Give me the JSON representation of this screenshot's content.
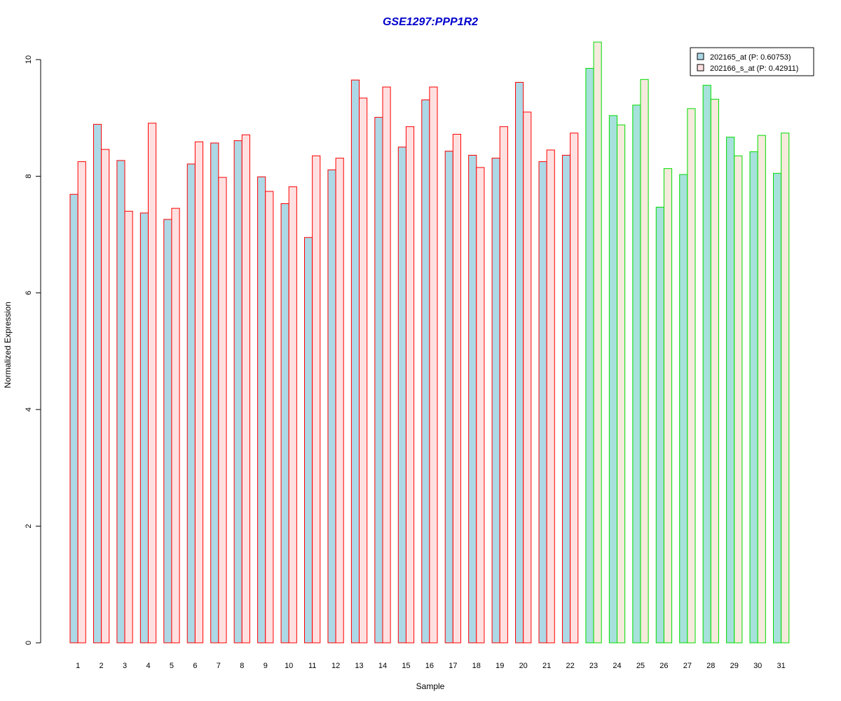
{
  "chart_data": {
    "type": "bar",
    "title": "GSE1297:PPP1R2",
    "xlabel": "Sample",
    "ylabel": "Normalized Expression",
    "ylim": [
      0,
      10
    ],
    "yticks": [
      0,
      2,
      4,
      6,
      8,
      10
    ],
    "grid": false,
    "legend_position": "top-right",
    "categories": [
      "1",
      "2",
      "3",
      "4",
      "5",
      "6",
      "7",
      "8",
      "9",
      "10",
      "11",
      "12",
      "13",
      "14",
      "15",
      "16",
      "17",
      "18",
      "19",
      "20",
      "21",
      "22",
      "23",
      "24",
      "25",
      "26",
      "27",
      "28",
      "29",
      "30",
      "31"
    ],
    "groups": [
      {
        "from": 1,
        "to": 22,
        "border_color": "#ff0000"
      },
      {
        "from": 23,
        "to": 31,
        "border_color": "#00dd00"
      }
    ],
    "series": [
      {
        "name": "202165_at (P: 0.60753)",
        "fill_group1": "#add8e6",
        "fill_group2": "#a6e1db",
        "values": [
          7.69,
          8.89,
          8.27,
          7.37,
          7.26,
          8.21,
          8.57,
          8.61,
          7.99,
          7.53,
          6.95,
          8.11,
          9.65,
          9.01,
          8.5,
          9.31,
          8.43,
          8.36,
          8.31,
          9.61,
          8.25,
          8.36,
          9.85,
          9.04,
          9.22,
          7.47,
          8.03,
          9.56,
          8.67,
          8.42,
          8.05
        ]
      },
      {
        "name": "202166_s_at (P: 0.42911)",
        "fill_group1": "#ffe0e0",
        "fill_group2": "#f5eadb",
        "values": [
          8.25,
          8.46,
          7.4,
          8.91,
          7.45,
          8.59,
          7.98,
          8.71,
          7.74,
          7.82,
          8.35,
          8.31,
          9.34,
          9.53,
          8.85,
          9.53,
          8.72,
          8.15,
          8.85,
          9.1,
          8.45,
          8.74,
          10.3,
          8.88,
          9.66,
          8.13,
          9.16,
          9.32,
          8.35,
          8.7,
          8.74
        ]
      }
    ],
    "colors": {
      "title": "#0000cc",
      "legend_swatch_1": "#add8e6",
      "legend_swatch_2": "#ffe0e0",
      "legend_swatch_border": "#000000"
    }
  }
}
